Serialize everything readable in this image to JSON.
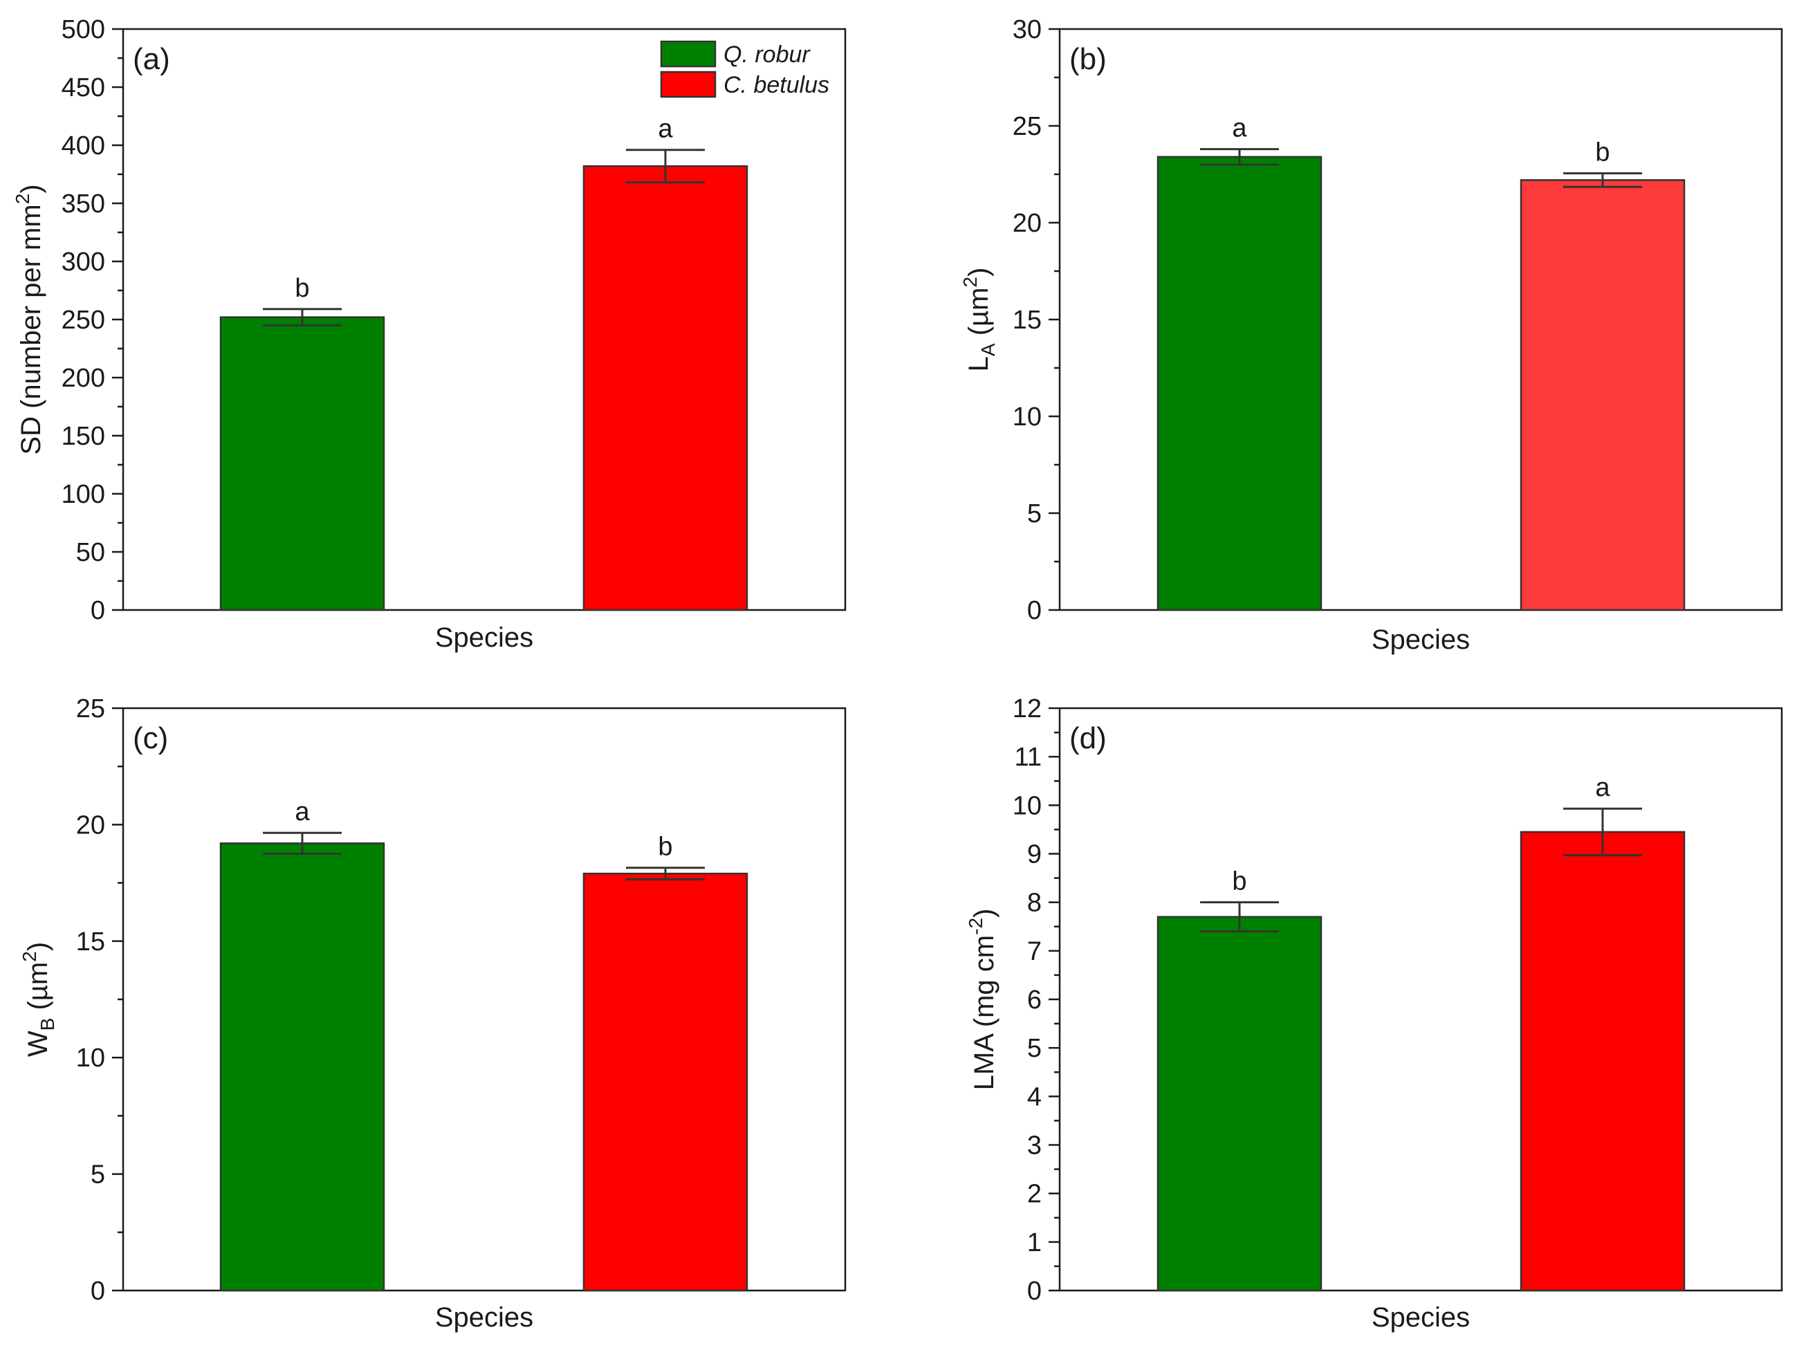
{
  "chart_data": [
    {
      "panel": "(a)",
      "type": "bar",
      "xlabel": "Species",
      "ylabel": {
        "main": "SD (number per mm",
        "sup": "2",
        "tail": ")"
      },
      "ylim": [
        0,
        500
      ],
      "major_ticks": [
        0,
        50,
        100,
        150,
        200,
        250,
        300,
        350,
        400,
        450,
        500
      ],
      "minor_step": 25,
      "categories": [
        "Q. robur",
        "C. betulus"
      ],
      "values": [
        252,
        382
      ],
      "errors": [
        7,
        14
      ],
      "letters": [
        "b",
        "a"
      ],
      "colors": [
        "#008000",
        "#ff0000"
      ],
      "legend": [
        {
          "label": "Q. robur",
          "color": "#008000"
        },
        {
          "label": "C. betulus",
          "color": "#ff0000"
        }
      ]
    },
    {
      "panel": "(b)",
      "type": "bar",
      "xlabel": "Species",
      "ylabel": {
        "main": "L",
        "sub": "A",
        "rest": " (µm",
        "sup": "2",
        "tail": ")"
      },
      "ylim": [
        0,
        30
      ],
      "major_ticks": [
        0,
        5,
        10,
        15,
        20,
        25,
        30
      ],
      "minor_step": 2.5,
      "categories": [
        "Q. robur",
        "C. betulus"
      ],
      "values": [
        23.4,
        22.2
      ],
      "errors": [
        0.4,
        0.35
      ],
      "letters": [
        "a",
        "b"
      ],
      "colors": [
        "#008000",
        "#ff3a3a"
      ]
    },
    {
      "panel": "(c)",
      "type": "bar",
      "xlabel": "Species",
      "ylabel": {
        "main": "W",
        "sub": "B",
        "rest": " (µm",
        "sup": "2",
        "tail": ")"
      },
      "ylim": [
        0,
        25
      ],
      "major_ticks": [
        0,
        5,
        10,
        15,
        20,
        25
      ],
      "minor_step": 2.5,
      "categories": [
        "Q. robur",
        "C. betulus"
      ],
      "values": [
        19.2,
        17.9
      ],
      "errors": [
        0.45,
        0.25
      ],
      "letters": [
        "a",
        "b"
      ],
      "colors": [
        "#008000",
        "#ff0000"
      ]
    },
    {
      "panel": "(d)",
      "type": "bar",
      "xlabel": "Species",
      "ylabel": {
        "main": "LMA (mg cm",
        "sup": "-2",
        "tail": ")"
      },
      "ylim": [
        0,
        12
      ],
      "major_ticks": [
        0,
        1,
        2,
        3,
        4,
        5,
        6,
        7,
        8,
        9,
        10,
        11,
        12
      ],
      "minor_step": 0.5,
      "categories": [
        "Q. robur",
        "C. betulus"
      ],
      "values": [
        7.7,
        9.45
      ],
      "errors": [
        0.3,
        0.48
      ],
      "letters": [
        "b",
        "a"
      ],
      "colors": [
        "#008000",
        "#ff0000"
      ]
    }
  ]
}
